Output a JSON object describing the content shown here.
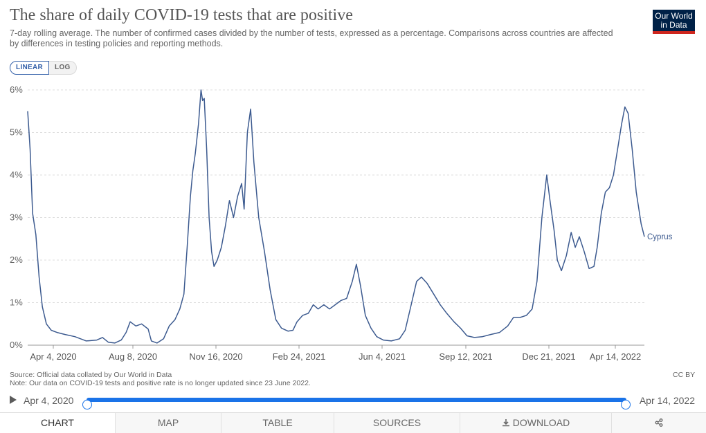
{
  "header": {
    "title": "The share of daily COVID-19 tests that are positive",
    "subtitle": "7-day rolling average. The number of confirmed cases divided by the number of tests, expressed as a percentage. Comparisons across countries are affected by differences in testing policies and reporting methods.",
    "logo_line1": "Our World",
    "logo_line2": "in Data"
  },
  "scale_toggle": {
    "linear": "LINEAR",
    "log": "LOG",
    "selected": "LINEAR"
  },
  "chart_data": {
    "type": "line",
    "title": "The share of daily COVID-19 tests that are positive",
    "ylim": [
      0,
      6
    ],
    "y_ticks": [
      "0%",
      "1%",
      "2%",
      "3%",
      "4%",
      "5%",
      "6%"
    ],
    "x_ticks": [
      "Apr 4, 2020",
      "Aug 8, 2020",
      "Nov 16, 2020",
      "Feb 24, 2021",
      "Jun 4, 2021",
      "Sep 12, 2021",
      "Dec 21, 2021",
      "Apr 14, 2022"
    ],
    "x_range": [
      "2020-04-04",
      "2022-06-23"
    ],
    "grid": "horizontal dashed",
    "series": [
      {
        "name": "Cyprus",
        "color": "#3c5a8f",
        "points": [
          [
            "2020-04-04",
            5.5
          ],
          [
            "2020-04-07",
            4.6
          ],
          [
            "2020-04-10",
            3.1
          ],
          [
            "2020-04-14",
            2.6
          ],
          [
            "2020-04-18",
            1.6
          ],
          [
            "2020-04-22",
            0.9
          ],
          [
            "2020-04-27",
            0.5
          ],
          [
            "2020-05-03",
            0.35
          ],
          [
            "2020-05-10",
            0.3
          ],
          [
            "2020-05-20",
            0.25
          ],
          [
            "2020-06-01",
            0.2
          ],
          [
            "2020-06-15",
            0.1
          ],
          [
            "2020-06-28",
            0.12
          ],
          [
            "2020-07-05",
            0.18
          ],
          [
            "2020-07-12",
            0.07
          ],
          [
            "2020-07-20",
            0.05
          ],
          [
            "2020-07-28",
            0.12
          ],
          [
            "2020-08-03",
            0.3
          ],
          [
            "2020-08-08",
            0.55
          ],
          [
            "2020-08-15",
            0.45
          ],
          [
            "2020-08-22",
            0.5
          ],
          [
            "2020-08-30",
            0.38
          ],
          [
            "2020-09-03",
            0.1
          ],
          [
            "2020-09-10",
            0.05
          ],
          [
            "2020-09-18",
            0.15
          ],
          [
            "2020-09-25",
            0.45
          ],
          [
            "2020-10-02",
            0.6
          ],
          [
            "2020-10-08",
            0.85
          ],
          [
            "2020-10-13",
            1.2
          ],
          [
            "2020-10-17",
            2.3
          ],
          [
            "2020-10-21",
            3.5
          ],
          [
            "2020-10-24",
            4.1
          ],
          [
            "2020-10-27",
            4.5
          ],
          [
            "2020-10-31",
            5.2
          ],
          [
            "2020-11-03",
            6.0
          ],
          [
            "2020-11-05",
            5.75
          ],
          [
            "2020-11-07",
            5.8
          ],
          [
            "2020-11-10",
            4.6
          ],
          [
            "2020-11-13",
            3.0
          ],
          [
            "2020-11-16",
            2.2
          ],
          [
            "2020-11-19",
            1.85
          ],
          [
            "2020-11-23",
            2.0
          ],
          [
            "2020-11-28",
            2.3
          ],
          [
            "2020-12-03",
            2.8
          ],
          [
            "2020-12-08",
            3.4
          ],
          [
            "2020-12-13",
            3.0
          ],
          [
            "2020-12-18",
            3.5
          ],
          [
            "2020-12-23",
            3.8
          ],
          [
            "2020-12-26",
            3.2
          ],
          [
            "2020-12-30",
            5.0
          ],
          [
            "2021-01-03",
            5.55
          ],
          [
            "2021-01-07",
            4.3
          ],
          [
            "2021-01-13",
            3.0
          ],
          [
            "2021-01-20",
            2.2
          ],
          [
            "2021-01-27",
            1.3
          ],
          [
            "2021-02-03",
            0.6
          ],
          [
            "2021-02-10",
            0.4
          ],
          [
            "2021-02-18",
            0.33
          ],
          [
            "2021-02-24",
            0.35
          ],
          [
            "2021-03-01",
            0.55
          ],
          [
            "2021-03-08",
            0.7
          ],
          [
            "2021-03-15",
            0.75
          ],
          [
            "2021-03-21",
            0.95
          ],
          [
            "2021-03-27",
            0.85
          ],
          [
            "2021-04-03",
            0.95
          ],
          [
            "2021-04-10",
            0.85
          ],
          [
            "2021-04-17",
            0.95
          ],
          [
            "2021-04-24",
            1.05
          ],
          [
            "2021-05-01",
            1.1
          ],
          [
            "2021-05-08",
            1.5
          ],
          [
            "2021-05-13",
            1.9
          ],
          [
            "2021-05-18",
            1.4
          ],
          [
            "2021-05-24",
            0.7
          ],
          [
            "2021-05-31",
            0.4
          ],
          [
            "2021-06-07",
            0.2
          ],
          [
            "2021-06-15",
            0.12
          ],
          [
            "2021-06-25",
            0.1
          ],
          [
            "2021-07-05",
            0.15
          ],
          [
            "2021-07-12",
            0.35
          ],
          [
            "2021-07-20",
            1.0
          ],
          [
            "2021-07-26",
            1.5
          ],
          [
            "2021-08-01",
            1.6
          ],
          [
            "2021-08-08",
            1.45
          ],
          [
            "2021-08-16",
            1.2
          ],
          [
            "2021-08-24",
            0.95
          ],
          [
            "2021-09-01",
            0.75
          ],
          [
            "2021-09-10",
            0.55
          ],
          [
            "2021-09-18",
            0.4
          ],
          [
            "2021-09-26",
            0.22
          ],
          [
            "2021-10-05",
            0.18
          ],
          [
            "2021-10-15",
            0.2
          ],
          [
            "2021-10-25",
            0.25
          ],
          [
            "2021-11-05",
            0.3
          ],
          [
            "2021-11-15",
            0.45
          ],
          [
            "2021-11-22",
            0.65
          ],
          [
            "2021-11-30",
            0.65
          ],
          [
            "2021-12-08",
            0.7
          ],
          [
            "2021-12-15",
            0.85
          ],
          [
            "2021-12-21",
            1.5
          ],
          [
            "2021-12-27",
            3.0
          ],
          [
            "2022-01-02",
            4.0
          ],
          [
            "2022-01-06",
            3.4
          ],
          [
            "2022-01-11",
            2.7
          ],
          [
            "2022-01-15",
            2.0
          ],
          [
            "2022-01-20",
            1.75
          ],
          [
            "2022-01-26",
            2.1
          ],
          [
            "2022-02-01",
            2.65
          ],
          [
            "2022-02-06",
            2.3
          ],
          [
            "2022-02-11",
            2.55
          ],
          [
            "2022-02-17",
            2.2
          ],
          [
            "2022-02-23",
            1.8
          ],
          [
            "2022-03-01",
            1.85
          ],
          [
            "2022-03-05",
            2.3
          ],
          [
            "2022-03-10",
            3.1
          ],
          [
            "2022-03-15",
            3.6
          ],
          [
            "2022-03-20",
            3.7
          ],
          [
            "2022-03-25",
            4.0
          ],
          [
            "2022-03-30",
            4.6
          ],
          [
            "2022-04-04",
            5.2
          ],
          [
            "2022-04-08",
            5.6
          ],
          [
            "2022-04-12",
            5.45
          ],
          [
            "2022-04-17",
            4.6
          ],
          [
            "2022-04-22",
            3.6
          ],
          [
            "2022-04-28",
            2.85
          ],
          [
            "2022-05-02",
            2.55
          ]
        ]
      }
    ]
  },
  "footer": {
    "source": "Source: Official data collated by Our World in Data",
    "note": "Note: Our data on COVID-19 tests and positive rate is no longer updated since 23 June 2022.",
    "license": "CC BY"
  },
  "timeline": {
    "start_label": "Apr 4, 2020",
    "end_label": "Apr 14, 2022",
    "start_fraction": 0.0,
    "end_fraction": 1.0
  },
  "tabs": [
    {
      "label": "CHART",
      "active": true
    },
    {
      "label": "MAP",
      "active": false
    },
    {
      "label": "TABLE",
      "active": false
    },
    {
      "label": "SOURCES",
      "active": false
    },
    {
      "label": "DOWNLOAD",
      "active": false
    },
    {
      "label": "",
      "active": false
    }
  ],
  "icons": {
    "download": "download-icon",
    "share": "share-icon",
    "play": "play-icon"
  }
}
